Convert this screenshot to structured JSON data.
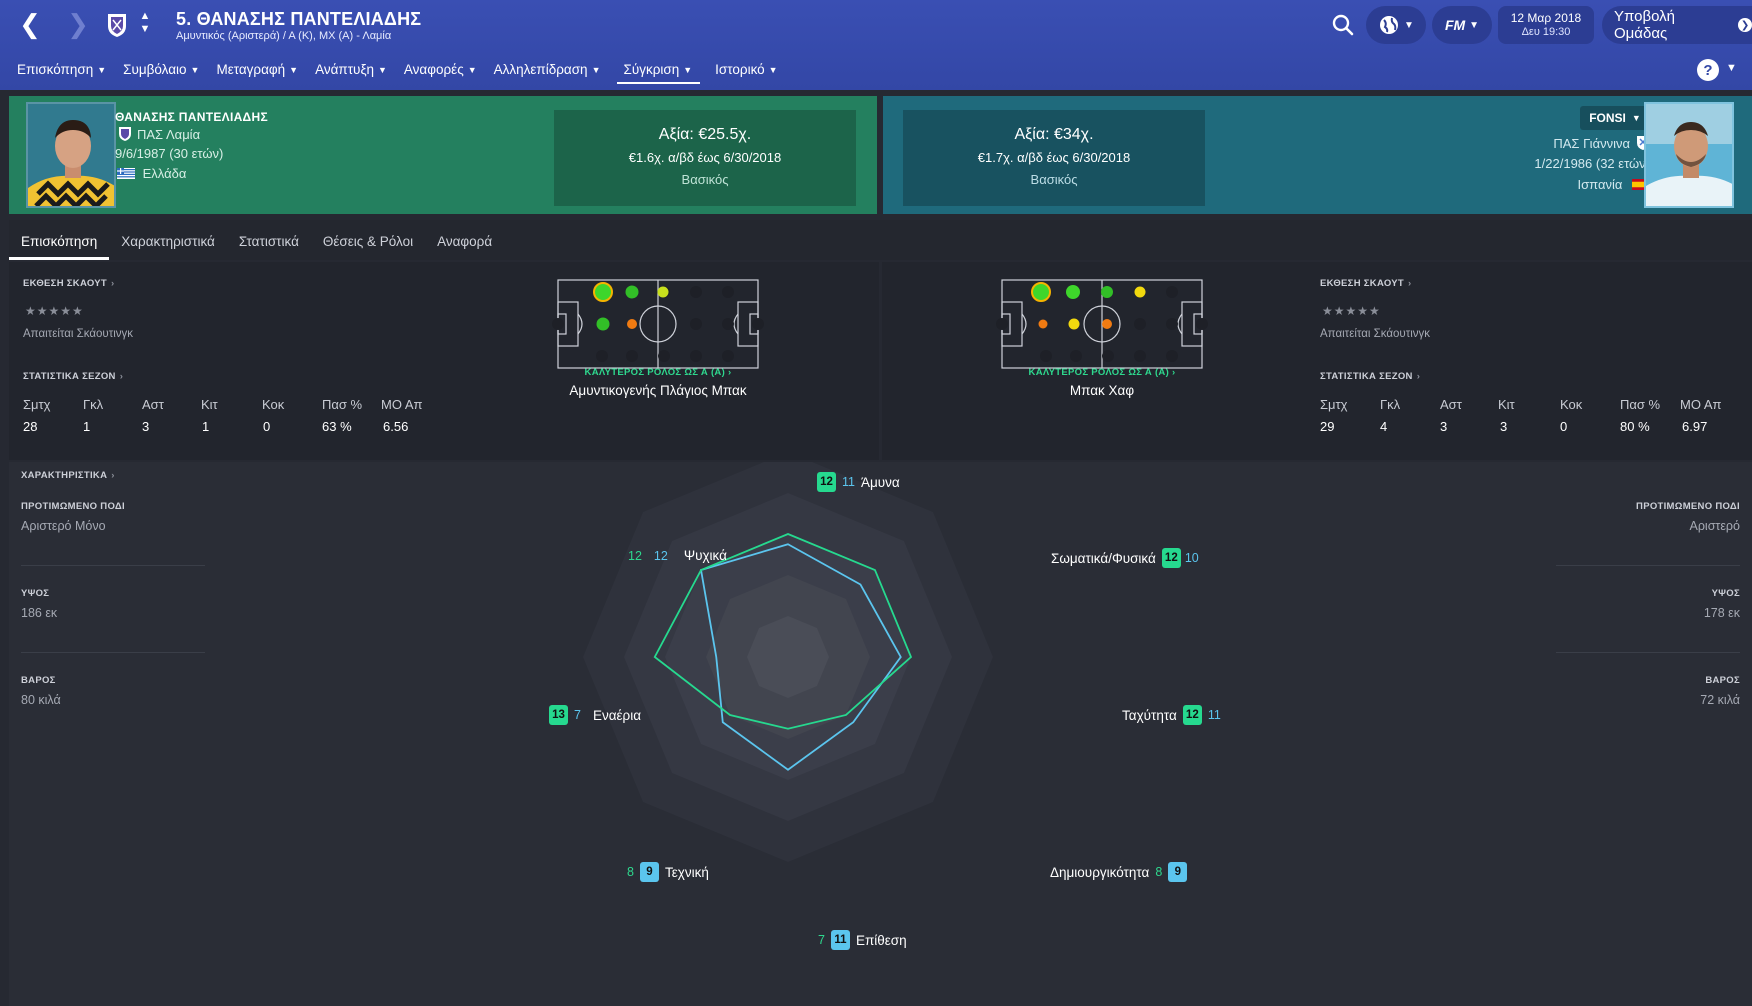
{
  "header": {
    "title": "5. ΘΑΝΑΣΗΣ ΠΑΝΤΕΛΙΑΔΗΣ",
    "subtitle": "Αμυντικός (Αριστερά) / Α (Κ), ΜΧ (Α) - Λαμία",
    "fm_label": "FM",
    "date": "12 Μαρ 2018",
    "time": "Δευ 19:30",
    "submit_label": "Υποβολή Ομάδας"
  },
  "tabs": [
    "Επισκόπηση",
    "Συμβόλαιο",
    "Μεταγραφή",
    "Ανάπτυξη",
    "Αναφορές",
    "Αλληλεπίδραση",
    "Σύγκριση",
    "Ιστορικό"
  ],
  "help_label": "?",
  "left_player": {
    "name": "ΘΑΝΑΣΗΣ ΠΑΝΤΕΛΙΑΔΗΣ",
    "club": "ΠΑΣ Λαμία",
    "dob": "9/6/1987 (30 ετών)",
    "nation": "Ελλάδα",
    "value": "Αξία: €25.5χ.",
    "wage": "€1.6χ. α/βδ έως 6/30/2018",
    "status": "Βασικός"
  },
  "right_player": {
    "name": "FONSI",
    "club": "ΠΑΣ Γιάννινα",
    "dob": "1/22/1986 (32 ετών)",
    "nation": "Ισπανία",
    "value": "Αξία: €34χ.",
    "wage": "€1.7χ. α/βδ έως 6/30/2018",
    "status": "Βασικός"
  },
  "subtabs": [
    "Επισκόπηση",
    "Χαρακτηριστικά",
    "Στατιστικά",
    "Θέσεις & Ρόλοι",
    "Αναφορά"
  ],
  "sections": {
    "scout": "ΕΚΘΕΣΗ ΣΚΑΟΥΤ",
    "stars": "★★★★★",
    "scout_required": "Απαιτείται Σκάουτινγκ",
    "season_stats": "ΣΤΑΤΙΣΤΙΚΑ ΣΕΖΟΝ",
    "best_role": "ΚΑΛΥΤΕΡΟΣ ΡΟΛΟΣ ΩΣ Α (Α)",
    "attributes": "ΧΑΡΑΚΤΗΡΙΣΤΙΚΑ",
    "foot": "ΠΡΟΤΙΜΩΜΕΝΟ ΠΟΔΙ",
    "height": "ΥΨΟΣ",
    "weight": "ΒΑΡΟΣ"
  },
  "stat_headers": [
    "Σμτχ",
    "Γκλ",
    "Αστ",
    "Κιτ",
    "Κοκ",
    "Πασ %",
    "ΜΟ Απ"
  ],
  "left_stats": [
    "28",
    "1",
    "3",
    "1",
    "0",
    "63 %",
    "6.56"
  ],
  "right_stats": [
    "29",
    "4",
    "3",
    "3",
    "0",
    "80 %",
    "6.97"
  ],
  "left_role": "Αμυντικογενής Πλάγιος Μπακ",
  "right_role": "Μπακ Χαφ",
  "left_attrs": {
    "foot": "Αριστερό Μόνο",
    "height": "186 εκ",
    "weight": "80 κιλά"
  },
  "right_attrs": {
    "foot": "Αριστερό",
    "height": "178 εκ",
    "weight": "72 κιλά"
  },
  "radar": {
    "categories": [
      "Άμυνα",
      "Σωματικά/Φυσικά",
      "Ταχύτητα",
      "Δημιουργικότητα",
      "Επίθεση",
      "Τεχνική",
      "Εναέρια",
      "Ψυχικά"
    ],
    "series": [
      {
        "values": [
          12,
          12,
          12,
          8,
          7,
          8,
          13,
          12
        ],
        "color": "#26d98f"
      },
      {
        "values": [
          11,
          10,
          11,
          9,
          11,
          9,
          7,
          12
        ],
        "color": "#5bc5ee"
      }
    ],
    "max": 20
  }
}
